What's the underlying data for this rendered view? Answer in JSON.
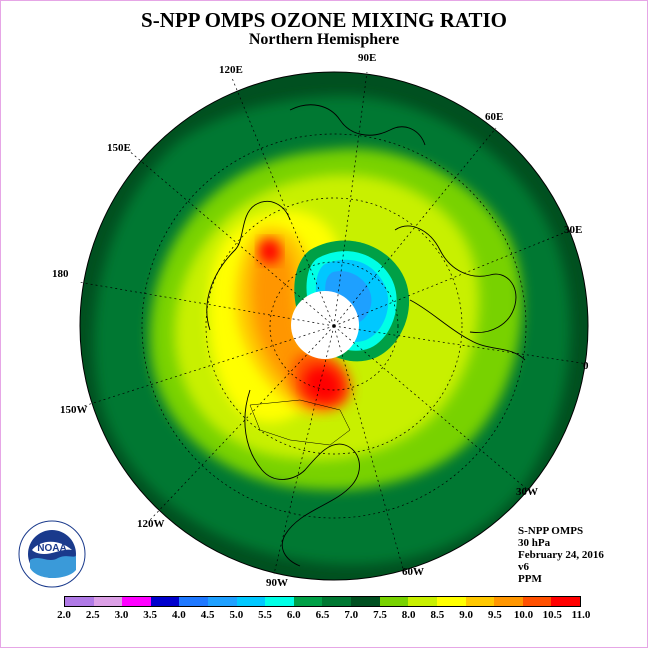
{
  "header": {
    "title": "S-NPP OMPS OZONE MIXING RATIO",
    "subtitle": "Northern Hemisphere"
  },
  "longitude_labels": [
    "120E",
    "90E",
    "60E",
    "150E",
    "30E",
    "180",
    "0",
    "150W",
    "30W",
    "120W",
    "60W",
    "90W"
  ],
  "info": {
    "instrument": "S-NPP OMPS",
    "level": "30 hPa",
    "date": "February 24, 2016",
    "version": "v6",
    "units": "PPM"
  },
  "logo": {
    "text": "NOAA",
    "icon": "noaa-logo"
  },
  "colorbar": {
    "ticks": [
      "2.0",
      "2.5",
      "3.0",
      "3.5",
      "4.0",
      "4.5",
      "5.0",
      "5.5",
      "6.0",
      "6.5",
      "7.0",
      "7.5",
      "8.0",
      "8.5",
      "9.0",
      "9.5",
      "10.0",
      "10.5",
      "11.0"
    ],
    "colors": [
      "#b07ae6",
      "#dca0e6",
      "#ff00ff",
      "#0000cd",
      "#1e78ff",
      "#1ea0ff",
      "#00c8ff",
      "#00ffe6",
      "#00a046",
      "#007832",
      "#005020",
      "#78d200",
      "#c8f000",
      "#ffff00",
      "#ffc800",
      "#ff9600",
      "#ff5000",
      "#ff0000",
      "#8c5028"
    ]
  }
}
